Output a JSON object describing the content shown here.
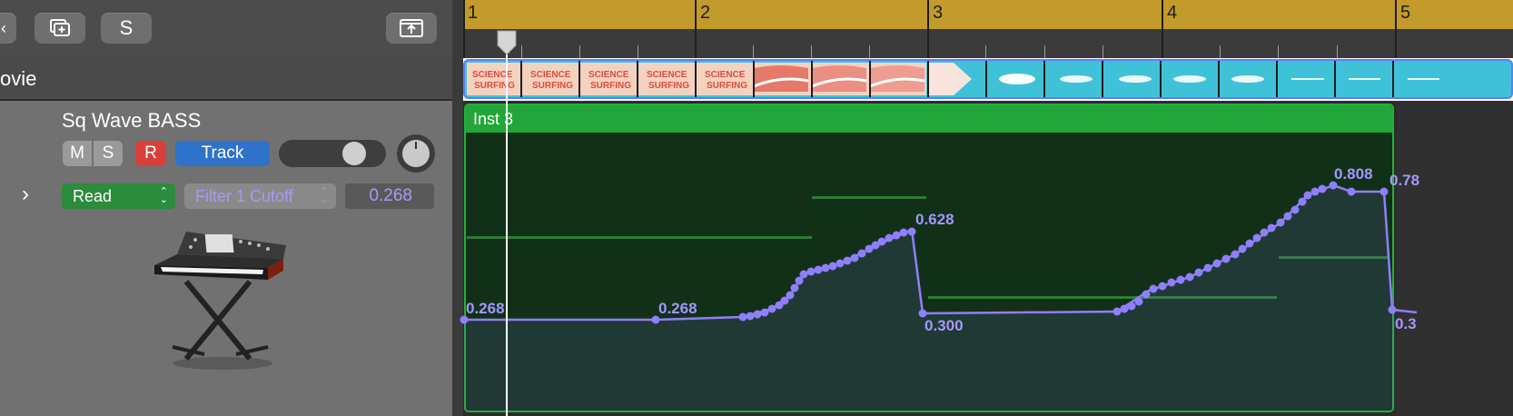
{
  "toolbar": {
    "buttons": [
      {
        "name": "back-button",
        "icon": "chevron-left-icon"
      },
      {
        "name": "duplicate-track-button",
        "icon": "duplicate-track-icon"
      },
      {
        "name": "solo-toolbar-button",
        "label": "S"
      },
      {
        "name": "share-button",
        "icon": "export-icon"
      }
    ]
  },
  "movie_track": {
    "label": "ovie"
  },
  "track": {
    "name": "Sq Wave BASS",
    "mute_label": "M",
    "solo_label": "S",
    "record_label": "R",
    "track_label": "Track",
    "automation_mode": "Read",
    "automation_param": "Filter 1 Cutoff",
    "automation_value": "0.268",
    "volume_level": 0.8,
    "instrument_icon": "synth-keyboard-icon"
  },
  "ruler": {
    "bars": [
      "1",
      "2",
      "3",
      "4",
      "5"
    ]
  },
  "region": {
    "name": "Inst 3",
    "automation_labels": [
      "0.268",
      "0.268",
      "0.628",
      "0.300",
      "0.808",
      "0.78",
      "0.3"
    ]
  },
  "colors": {
    "ruler": "#c29b2c",
    "region_header": "#22a63a",
    "region_body": "#123018",
    "automation": "#8f7ffc",
    "movie_strip": "#3fc2d8",
    "record": "#d9403b",
    "track_button": "#2f72c9",
    "read_mode": "#2a8c3c"
  }
}
